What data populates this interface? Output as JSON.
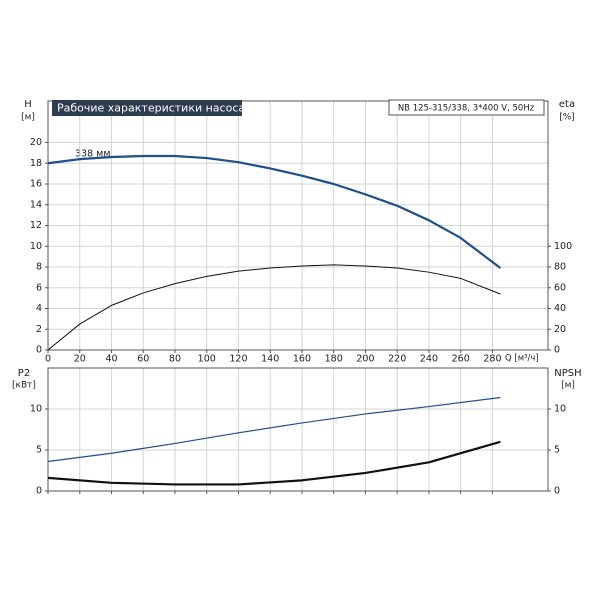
{
  "chart_data": [
    {
      "type": "line",
      "title": "Рабочие характеристики насоса",
      "subtitle": "NB 125-315/338, 3*400 V, 50Hz",
      "annotation": "338 мм",
      "xlabel": "Q [м³/ч]",
      "ylabel": "H",
      "yunit": "[м]",
      "y2label": "eta",
      "y2unit": "[%]",
      "x": [
        0,
        20,
        40,
        60,
        80,
        100,
        120,
        140,
        160,
        180,
        200,
        220,
        240,
        260,
        285
      ],
      "xlim": [
        0,
        315
      ],
      "xticks": [
        0,
        20,
        40,
        60,
        80,
        100,
        120,
        140,
        160,
        180,
        200,
        220,
        240,
        260,
        280
      ],
      "ylim": [
        0,
        24
      ],
      "yticks": [
        0,
        2,
        4,
        6,
        8,
        10,
        12,
        14,
        16,
        18,
        20
      ],
      "y2lim": [
        0,
        240
      ],
      "y2ticks": [
        0,
        20,
        40,
        60,
        80,
        100
      ],
      "grid": true,
      "series": [
        {
          "name": "H",
          "color": "#1f4e8c",
          "width": 2.2,
          "values": [
            18.0,
            18.4,
            18.6,
            18.7,
            18.7,
            18.5,
            18.1,
            17.5,
            16.8,
            16.0,
            15.0,
            13.9,
            12.5,
            10.8,
            7.9
          ]
        },
        {
          "name": "eta",
          "color": "#111111",
          "width": 1,
          "axis": "y2",
          "values": [
            0,
            25,
            43,
            55,
            64,
            71,
            76,
            79,
            81,
            82,
            81,
            79,
            75,
            69,
            54
          ]
        }
      ]
    },
    {
      "type": "line",
      "ylabel": "P2",
      "yunit": "[кВт]",
      "y2label": "NPSH",
      "y2unit": "[м]",
      "x": [
        0,
        40,
        80,
        120,
        160,
        200,
        240,
        285
      ],
      "xlim": [
        0,
        315
      ],
      "ylim": [
        0,
        15
      ],
      "yticks": [
        0,
        5,
        10
      ],
      "y2lim": [
        0,
        15
      ],
      "y2ticks": [
        0,
        5,
        10
      ],
      "grid": true,
      "series": [
        {
          "name": "P2",
          "color": "#1f4e8c",
          "width": 1.2,
          "values": [
            3.6,
            4.6,
            5.8,
            7.1,
            8.3,
            9.4,
            10.3,
            11.4
          ]
        },
        {
          "name": "NPSH",
          "color": "#111111",
          "width": 2.2,
          "axis": "y2",
          "values": [
            1.6,
            1.0,
            0.8,
            0.8,
            1.3,
            2.2,
            3.5,
            6.0
          ]
        }
      ]
    }
  ]
}
